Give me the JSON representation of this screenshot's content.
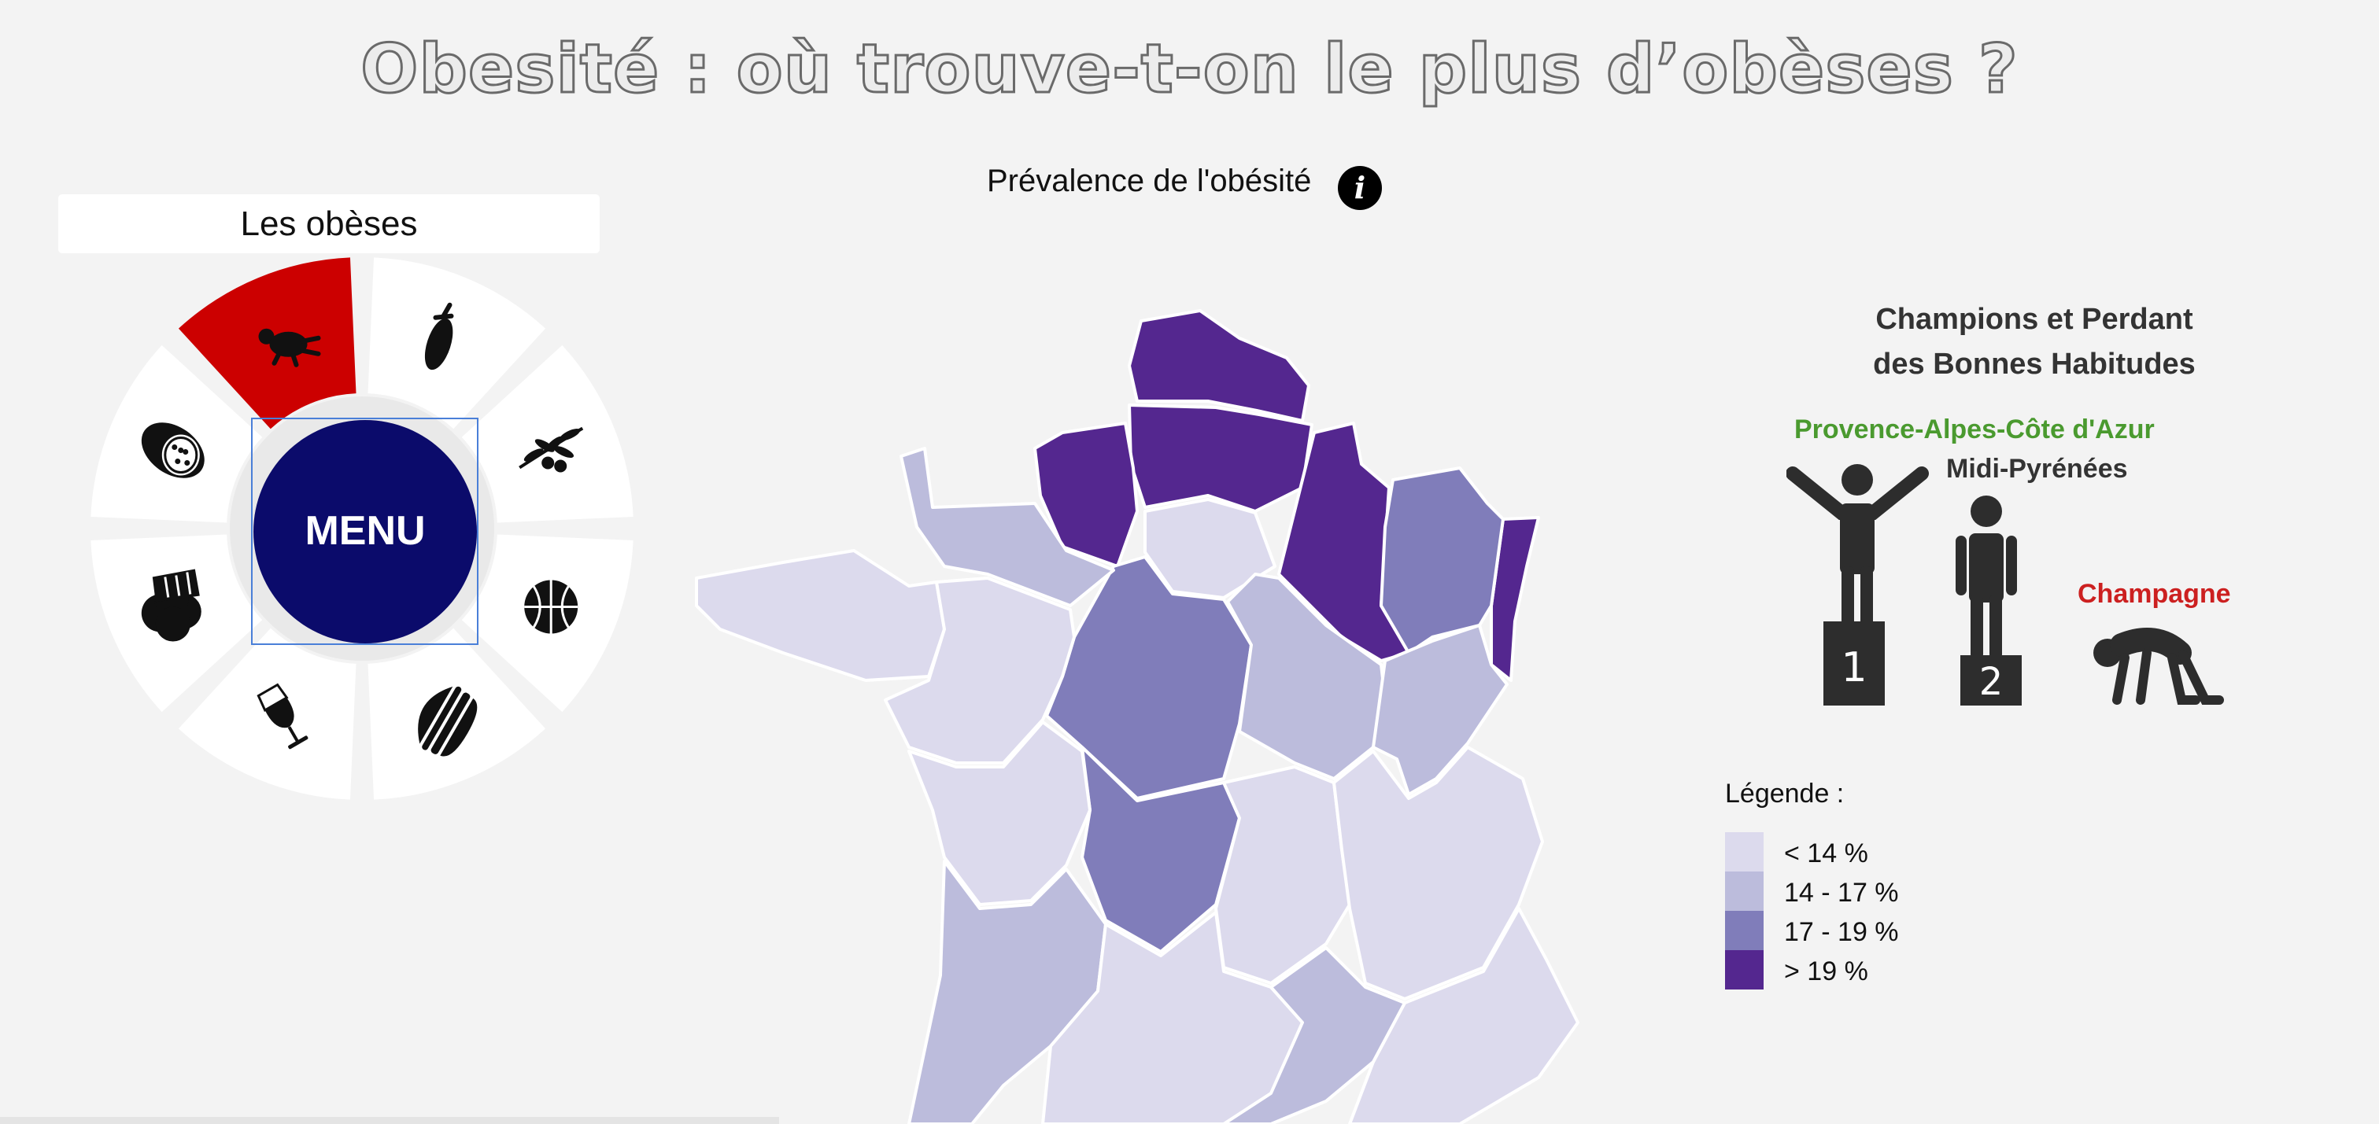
{
  "header": {
    "title": "Obesité : où trouve-t-on le plus d’obèses ?"
  },
  "map": {
    "title": "Prévalence de l'obésité",
    "info_glyph": "i"
  },
  "menu": {
    "header": "Les obèses",
    "center_label": "MENU",
    "active_color": "#cc0000",
    "center_color": "#0b0b6b",
    "segments": [
      {
        "icon": "eggplant-icon",
        "active": false
      },
      {
        "icon": "olive-branch-icon",
        "active": false
      },
      {
        "icon": "basketball-icon",
        "active": false
      },
      {
        "icon": "burger-icon",
        "active": false
      },
      {
        "icon": "wine-glass-icon",
        "active": false
      },
      {
        "icon": "cheese-icon",
        "active": false
      },
      {
        "icon": "sausage-icon",
        "active": false
      },
      {
        "icon": "obese-person-icon",
        "active": true
      }
    ]
  },
  "podium": {
    "title_line1": "Champions et Perdant",
    "title_line2": "des Bonnes Habitudes",
    "first": "Provence-Alpes-Côte d'Azur",
    "second": "Midi-Pyrénées",
    "loser": "Champagne",
    "first_rank": "1",
    "second_rank": "2"
  },
  "legend": {
    "title": "Légende :",
    "items": [
      {
        "label": "< 14 %",
        "color": "#dcdaed"
      },
      {
        "label": "14 - 17 %",
        "color": "#bcbcdc"
      },
      {
        "label": "17 - 19 %",
        "color": "#807dba"
      },
      {
        "label": "> 19 %",
        "color": "#54278f"
      }
    ]
  },
  "regions": [
    {
      "name": "Nord-Pas-de-Calais",
      "class": 3
    },
    {
      "name": "Picardie",
      "class": 3
    },
    {
      "name": "Haute-Normandie",
      "class": 3
    },
    {
      "name": "Champagne-Ardenne",
      "class": 3
    },
    {
      "name": "Alsace",
      "class": 3
    },
    {
      "name": "Lorraine",
      "class": 2
    },
    {
      "name": "Centre",
      "class": 2
    },
    {
      "name": "Limousin",
      "class": 2
    },
    {
      "name": "Île-de-France",
      "class": 0
    },
    {
      "name": "Basse-Normandie",
      "class": 1
    },
    {
      "name": "Bourgogne",
      "class": 1
    },
    {
      "name": "Franche-Comté",
      "class": 1
    },
    {
      "name": "Aquitaine",
      "class": 1
    },
    {
      "name": "Midi-Pyrénées",
      "class": 0
    },
    {
      "name": "Auvergne",
      "class": 0
    },
    {
      "name": "Bretagne",
      "class": 0
    },
    {
      "name": "Pays de la Loire",
      "class": 0
    },
    {
      "name": "Poitou-Charentes",
      "class": 0
    },
    {
      "name": "Rhône-Alpes",
      "class": 0
    },
    {
      "name": "Provence-Alpes-Côte d'Azur",
      "class": 0
    },
    {
      "name": "Languedoc-Roussillon",
      "class": 1
    }
  ]
}
